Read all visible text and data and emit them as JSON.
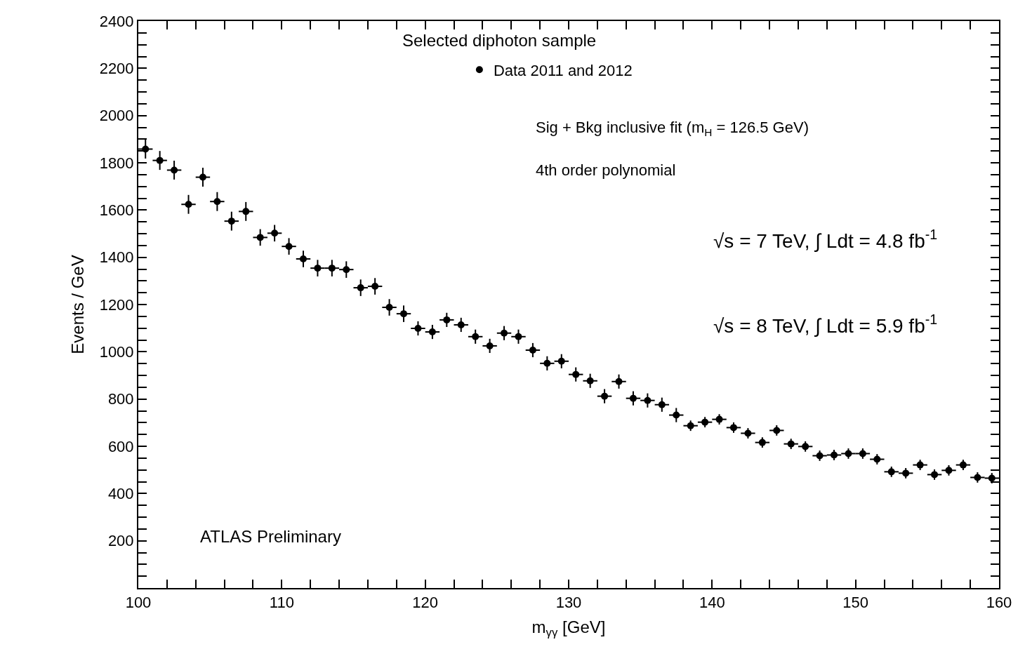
{
  "chart_data": {
    "type": "scatter",
    "xlabel": "m$_{γγ}$ [GeV]",
    "ylabel": "Events / GeV",
    "annotations": [
      "Selected diphoton sample",
      "Sig + Bkg inclusive fit (m$_{H}$ = 126.5 GeV)",
      "4th order polynomial",
      "√s = 7 TeV, ∫ Ldt = 4.8 fb$^{-1}$",
      "√s = 8 TeV, ∫ Ldt = 5.9 fb$^{-1}$",
      "ATLAS Preliminary"
    ],
    "x": [
      100.5,
      101.5,
      102.5,
      103.5,
      104.5,
      105.5,
      106.5,
      107.5,
      108.5,
      109.5,
      110.5,
      111.5,
      112.5,
      113.5,
      114.5,
      115.5,
      116.5,
      117.5,
      118.5,
      119.5,
      120.5,
      121.5,
      122.5,
      123.5,
      124.5,
      125.5,
      126.5,
      127.5,
      128.5,
      129.5,
      130.5,
      131.5,
      132.5,
      133.5,
      134.5,
      135.5,
      136.5,
      137.5,
      138.5,
      139.5,
      140.5,
      141.5,
      142.5,
      143.5,
      144.5,
      145.5,
      146.5,
      147.5,
      148.5,
      149.5,
      150.5,
      151.5,
      152.5,
      153.5,
      154.5,
      155.5,
      156.5,
      157.5,
      158.5,
      159.5
    ],
    "series": [
      {
        "name": "Data 2011 and 2012",
        "color": "#000000",
        "values": [
          1858,
          1810,
          1769,
          1624,
          1739,
          1636,
          1553,
          1594,
          1484,
          1502,
          1446,
          1393,
          1354,
          1354,
          1348,
          1271,
          1277,
          1188,
          1161,
          1099,
          1084,
          1135,
          1114,
          1064,
          1025,
          1079,
          1064,
          1007,
          951,
          960,
          904,
          877,
          812,
          874,
          803,
          794,
          776,
          732,
          687,
          702,
          714,
          679,
          655,
          616,
          667,
          610,
          599,
          560,
          563,
          569,
          569,
          545,
          492,
          486,
          521,
          480,
          498,
          521,
          468,
          465
        ],
        "errors": [
          40,
          40,
          40,
          40,
          40,
          40,
          40,
          40,
          35,
          35,
          35,
          35,
          35,
          35,
          35,
          35,
          35,
          35,
          35,
          30,
          30,
          30,
          30,
          30,
          30,
          30,
          30,
          30,
          30,
          30,
          30,
          30,
          30,
          30,
          30,
          30,
          30,
          30,
          22,
          22,
          22,
          22,
          22,
          22,
          22,
          22,
          22,
          22,
          22,
          22,
          22,
          22,
          22,
          22,
          22,
          22,
          22,
          22,
          22,
          22
        ],
        "xerrors": [
          0.5,
          0.5,
          0.5,
          0.5,
          0.5,
          0.5,
          0.5,
          0.5,
          0.5,
          0.5,
          0.5,
          0.5,
          0.5,
          0.5,
          0.5,
          0.5,
          0.5,
          0.5,
          0.5,
          0.5,
          0.5,
          0.5,
          0.5,
          0.5,
          0.5,
          0.5,
          0.5,
          0.5,
          0.5,
          0.5,
          0.5,
          0.5,
          0.5,
          0.5,
          0.5,
          0.5,
          0.5,
          0.5,
          0.5,
          0.5,
          0.5,
          0.5,
          0.5,
          0.5,
          0.5,
          0.5,
          0.5,
          0.5,
          0.5,
          0.5,
          0.5,
          0.5,
          0.5,
          0.5,
          0.5,
          0.5,
          0.5,
          0.5,
          0.5,
          0.5
        ]
      }
    ],
    "xlim": [
      100,
      160
    ],
    "xticks": [
      100,
      {
        "value": 102,
        "label": null
      },
      {
        "value": 104,
        "label": null
      },
      {
        "value": 106,
        "label": null
      },
      {
        "value": 108,
        "label": null
      },
      110,
      {
        "value": 112,
        "label": null
      },
      {
        "value": 114,
        "label": null
      },
      {
        "value": 116,
        "label": null
      },
      {
        "value": 118,
        "label": null
      },
      120,
      {
        "value": 122,
        "label": null
      },
      {
        "value": 124,
        "label": null
      },
      {
        "value": 126,
        "label": null
      },
      {
        "value": 128,
        "label": null
      },
      130,
      {
        "value": 132,
        "label": null
      },
      {
        "value": 134,
        "label": null
      },
      {
        "value": 136,
        "label": null
      },
      {
        "value": 138,
        "label": null
      },
      140,
      {
        "value": 142,
        "label": null
      },
      {
        "value": 144,
        "label": null
      },
      {
        "value": 146,
        "label": null
      },
      {
        "value": 148,
        "label": null
      },
      150,
      {
        "value": 152,
        "label": null
      },
      {
        "value": 154,
        "label": null
      },
      {
        "value": 156,
        "label": null
      },
      {
        "value": 158,
        "label": null
      },
      160
    ],
    "ylim": [
      0,
      2400
    ],
    "yticks": [
      {
        "value": 50,
        "label": null
      },
      {
        "value": 100,
        "label": null
      },
      {
        "value": 150,
        "label": null
      },
      200,
      {
        "value": 250,
        "label": null
      },
      {
        "value": 300,
        "label": null
      },
      {
        "value": 350,
        "label": null
      },
      400,
      {
        "value": 450,
        "label": null
      },
      {
        "value": 500,
        "label": null
      },
      {
        "value": 550,
        "label": null
      },
      600,
      {
        "value": 650,
        "label": null
      },
      {
        "value": 700,
        "label": null
      },
      {
        "value": 750,
        "label": null
      },
      800,
      {
        "value": 850,
        "label": null
      },
      {
        "value": 900,
        "label": null
      },
      {
        "value": 950,
        "label": null
      },
      1000,
      {
        "value": 1050,
        "label": null
      },
      {
        "value": 1100,
        "label": null
      },
      {
        "value": 1150,
        "label": null
      },
      1200,
      {
        "value": 1250,
        "label": null
      },
      {
        "value": 1300,
        "label": null
      },
      {
        "value": 1350,
        "label": null
      },
      1400,
      {
        "value": 1450,
        "label": null
      },
      {
        "value": 1500,
        "label": null
      },
      {
        "value": 1550,
        "label": null
      },
      1600,
      {
        "value": 1650,
        "label": null
      },
      {
        "value": 1700,
        "label": null
      },
      {
        "value": 1750,
        "label": null
      },
      1800,
      {
        "value": 1850,
        "label": null
      },
      {
        "value": 1900,
        "label": null
      },
      {
        "value": 1950,
        "label": null
      },
      2000,
      {
        "value": 2050,
        "label": null
      },
      {
        "value": 2100,
        "label": null
      },
      {
        "value": 2150,
        "label": null
      },
      2200,
      {
        "value": 2250,
        "label": null
      },
      {
        "value": 2300,
        "label": null
      },
      {
        "value": 2350,
        "label": null
      },
      2400
    ],
    "legend": "top",
    "marker": "circle"
  }
}
